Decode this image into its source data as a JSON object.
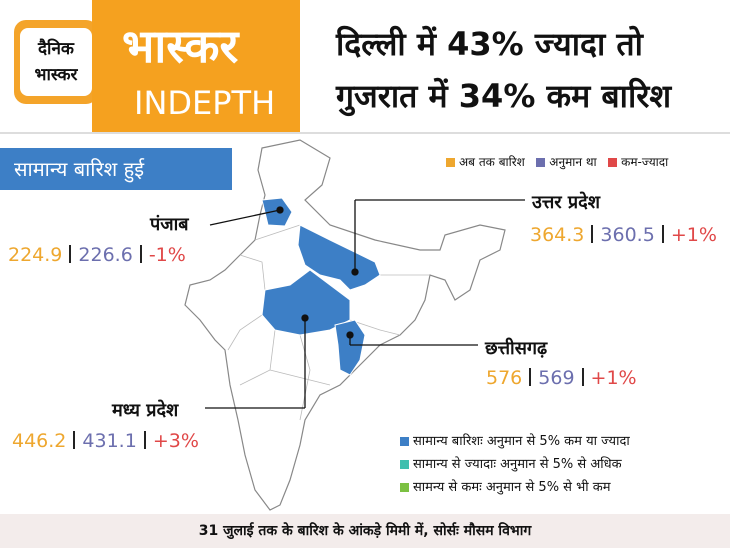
{
  "logo": {
    "line1": "दैनिक",
    "line2": "भास्कर"
  },
  "header": {
    "brand": "भास्कर",
    "subbrand": "INDEPTH",
    "headline": [
      "दिल्ली में 43% ज्यादा तो",
      "गुजरात में 34% कम बारिश"
    ]
  },
  "section_label": "सामान्य बारिश हुई",
  "key": [
    "अब तक बारिश",
    "अनुमान था",
    "कम-ज्यादा"
  ],
  "states": [
    {
      "name": "पंजाब",
      "actual": "224.9",
      "estimate": "226.6",
      "change": "-1%"
    },
    {
      "name": "उत्तर प्रदेश",
      "actual": "364.3",
      "estimate": "360.5",
      "change": "+1%"
    },
    {
      "name": "छत्तीसगढ़",
      "actual": "576",
      "estimate": "569",
      "change": "+1%"
    },
    {
      "name": "मध्य प्रदेश",
      "actual": "446.2",
      "estimate": "431.1",
      "change": "+3%"
    }
  ],
  "legend": [
    "सामान्य बारिशः अनुमान से 5% कम या ज्यादा",
    "सामान्य से ज्यादाः अनुमान से 5% से अधिक",
    "सामन्य से कमः अनुमान से 5% से भी कम"
  ],
  "footer": "31 जुलाई तक के बारिश के आंकड़े मिमी में, सोर्सः मौसम विभाग"
}
